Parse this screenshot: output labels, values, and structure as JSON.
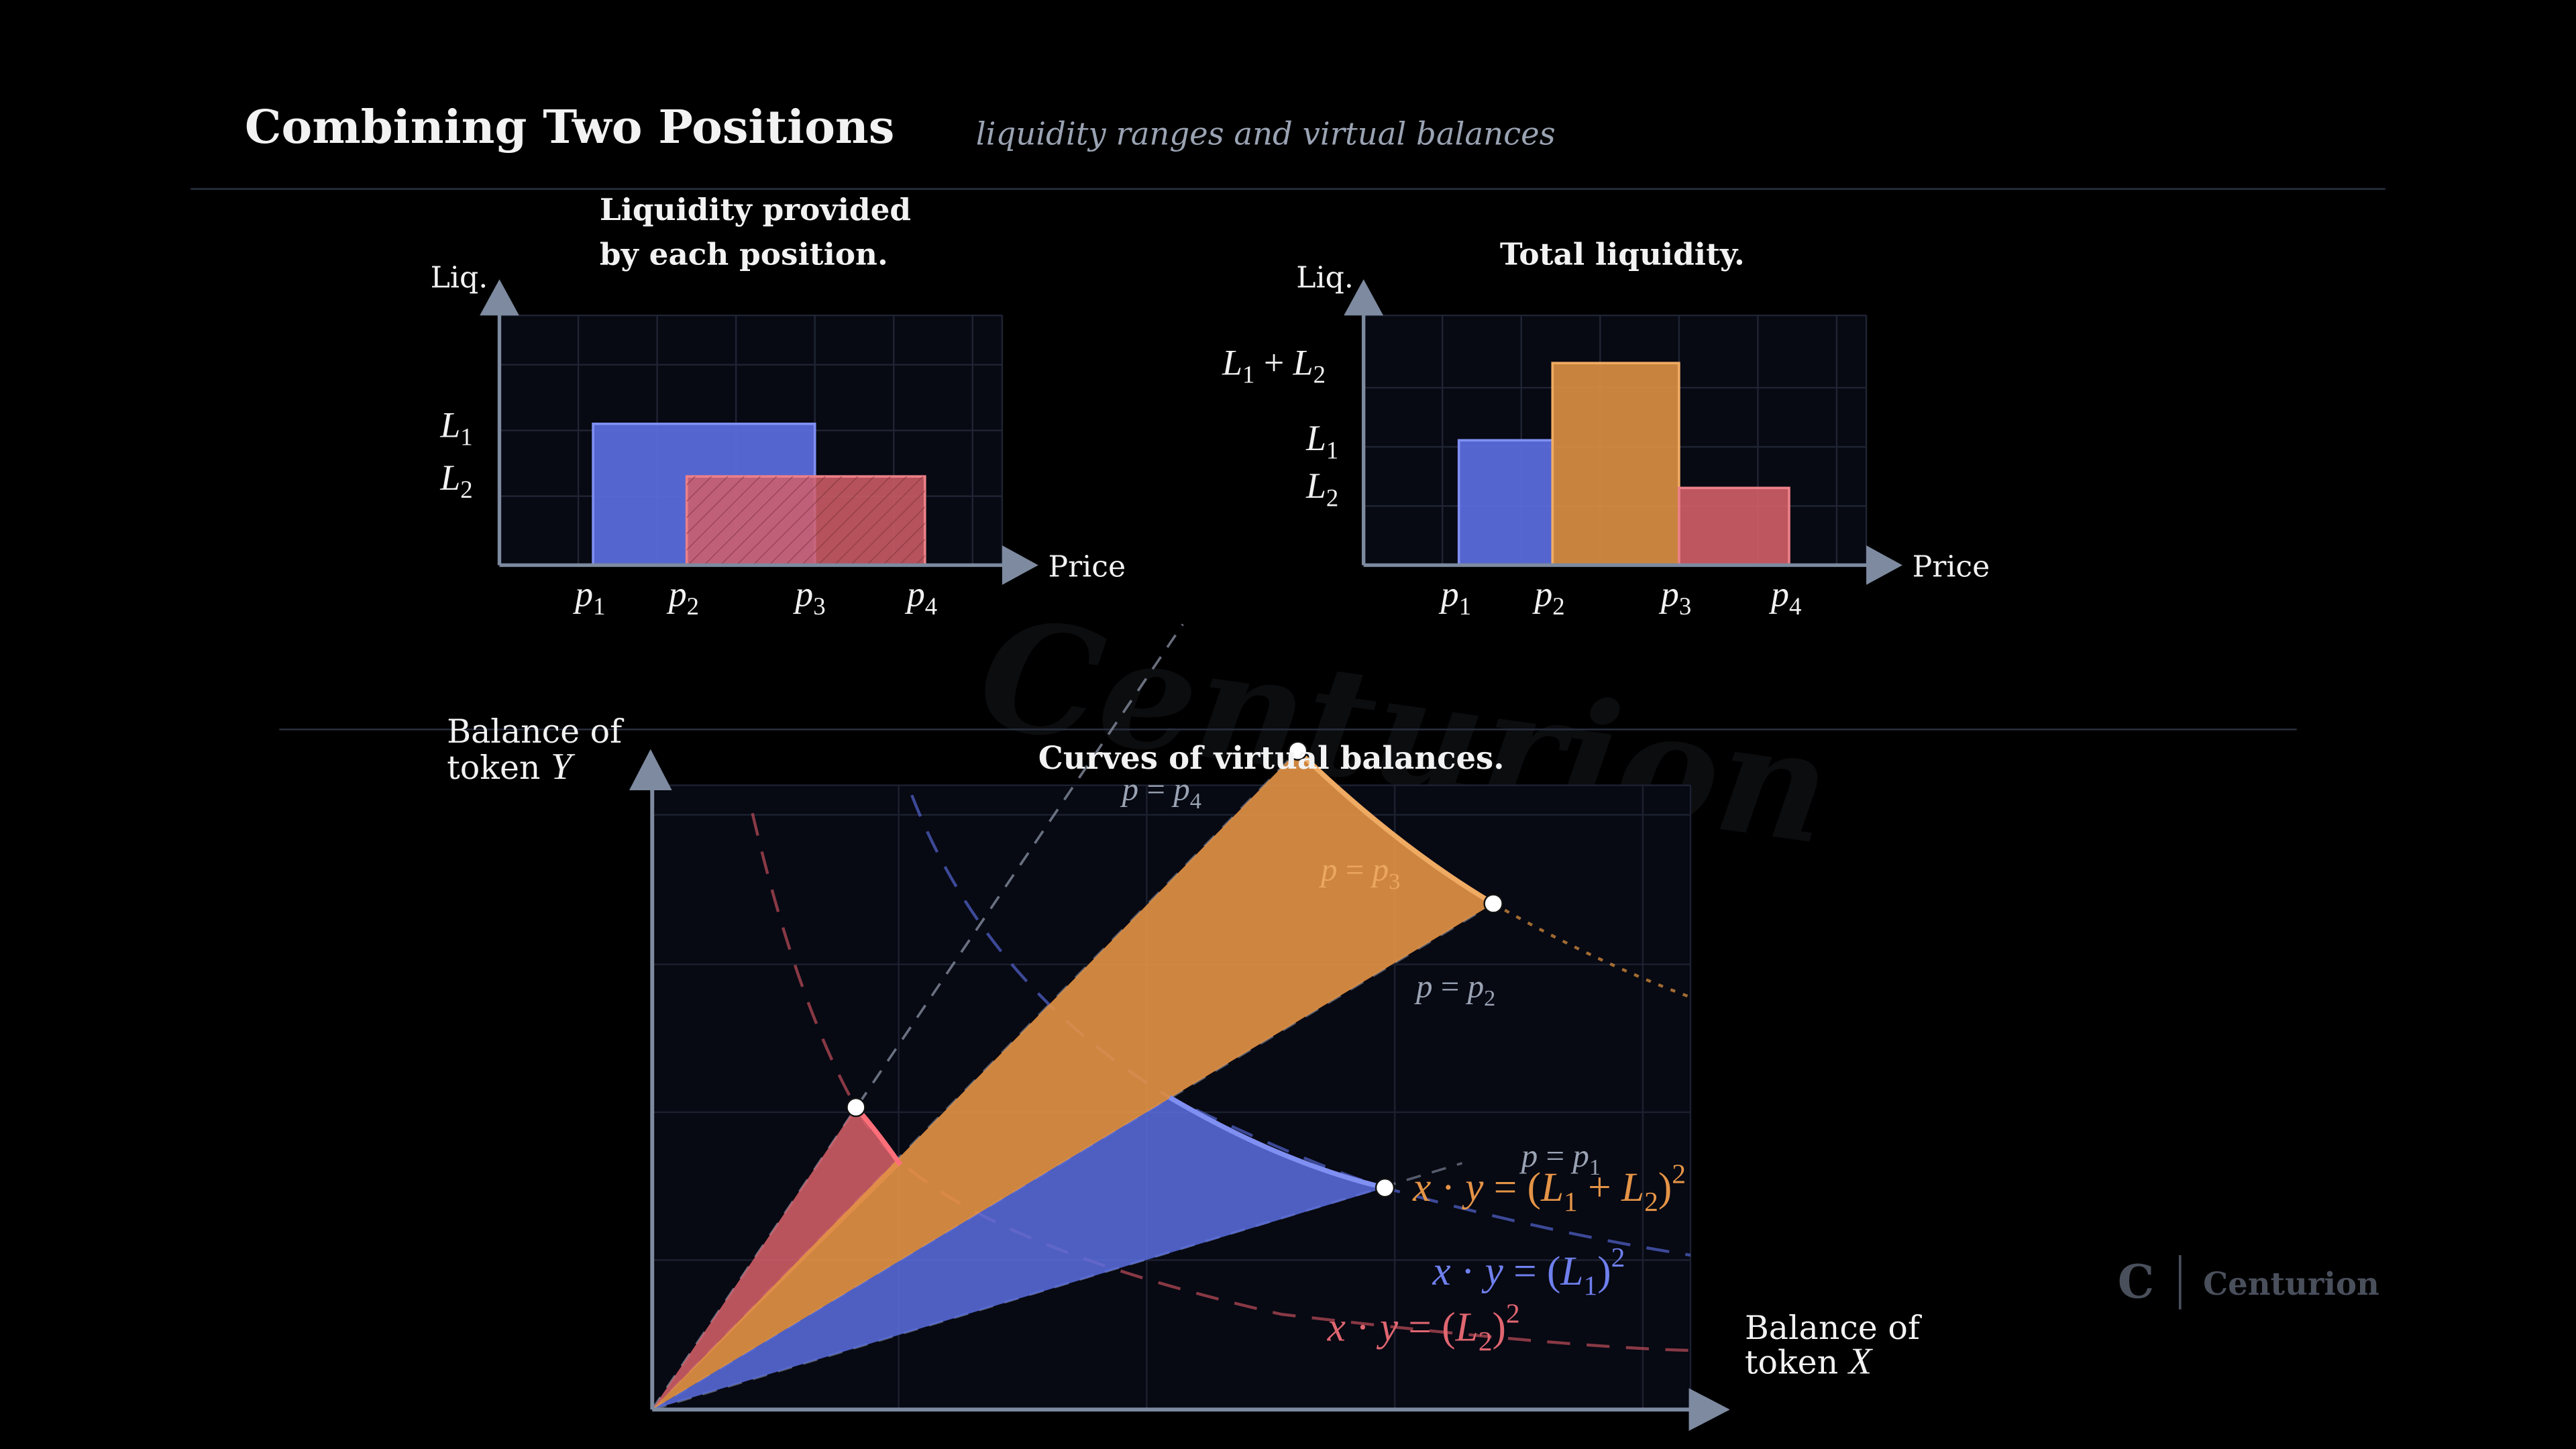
{
  "header": {
    "title": "Combining Two Positions",
    "subtitle": "liquidity ranges and virtual balances"
  },
  "colors": {
    "background": "#000000",
    "panel": "#070913",
    "grid": "#1f2433",
    "axis": "#7d8aa0",
    "position1_blue": "#5b6ee0",
    "position2_red": "#d35f68",
    "combined_orange": "#e49446",
    "text": "#f2f2f2",
    "muted": "#9aa3b3"
  },
  "chart_left": {
    "title_line1": "Liquidity provided",
    "title_line2": "by each position.",
    "y_axis_label": "Liq.",
    "x_axis_label": "Price",
    "y_ticks": [
      "L1",
      "L2"
    ],
    "x_ticks": [
      "p1",
      "p2",
      "p3",
      "p4"
    ],
    "positions": [
      {
        "name": "position-1",
        "from": "p1",
        "to": "p3",
        "liquidity": 1.0
      },
      {
        "name": "position-2",
        "from": "p2",
        "to": "p4",
        "liquidity": 0.6
      }
    ]
  },
  "chart_right": {
    "title": "Total liquidity.",
    "y_axis_label": "Liq.",
    "x_axis_label": "Price",
    "y_ticks": [
      "L1 + L2",
      "L1",
      "L2"
    ],
    "x_ticks": [
      "p1",
      "p2",
      "p3",
      "p4"
    ],
    "segments": [
      {
        "from": "p1",
        "to": "p2",
        "liquidity": 1.0,
        "color": "blue"
      },
      {
        "from": "p2",
        "to": "p3",
        "liquidity": 1.6,
        "color": "orange"
      },
      {
        "from": "p3",
        "to": "p4",
        "liquidity": 0.6,
        "color": "red"
      }
    ]
  },
  "chart_bottom": {
    "title": "Curves of virtual balances.",
    "y_axis_label_line1": "Balance of",
    "y_axis_label_line2": "token Y",
    "x_axis_label_line1": "Balance of",
    "x_axis_label_line2": "token X",
    "price_lines": [
      "p = p4",
      "p = p3",
      "p = p2",
      "p = p1"
    ],
    "curves": [
      {
        "name": "combined",
        "label": "x · y = (L1 + L2)²",
        "color": "orange"
      },
      {
        "name": "position-1",
        "label": "x · y = (L1)²",
        "color": "blue"
      },
      {
        "name": "position-2",
        "label": "x · y = (L2)²",
        "color": "red"
      }
    ]
  },
  "watermark": "Centurion",
  "brand": {
    "logo_letter": "C",
    "name": "Centurion"
  }
}
